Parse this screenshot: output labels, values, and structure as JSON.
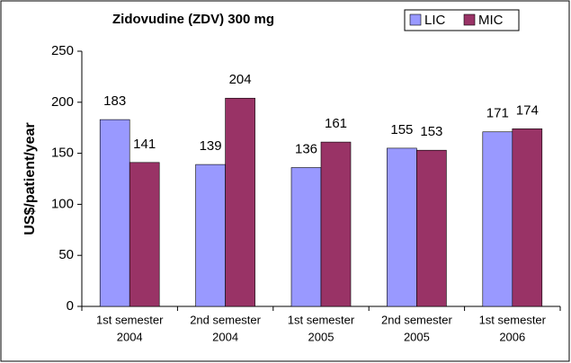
{
  "chart_data": {
    "type": "bar",
    "title": "Zidovudine (ZDV) 300 mg",
    "y_label": "US$/patient/year",
    "categories": [
      [
        "1st semester",
        "2004"
      ],
      [
        "2nd semester",
        "2004"
      ],
      [
        "1st semester",
        "2005"
      ],
      [
        "2nd semester",
        "2005"
      ],
      [
        "1st semester",
        "2006"
      ]
    ],
    "series": [
      {
        "name": "LIC",
        "color": "#9999ff",
        "values": [
          183,
          139,
          136,
          155,
          171
        ]
      },
      {
        "name": "MIC",
        "color": "#993366",
        "values": [
          141,
          204,
          161,
          153,
          174
        ]
      }
    ],
    "ylim": [
      0,
      250
    ],
    "yticks": [
      0,
      50,
      100,
      150,
      200,
      250
    ],
    "grid": false,
    "legend": "top-right"
  }
}
